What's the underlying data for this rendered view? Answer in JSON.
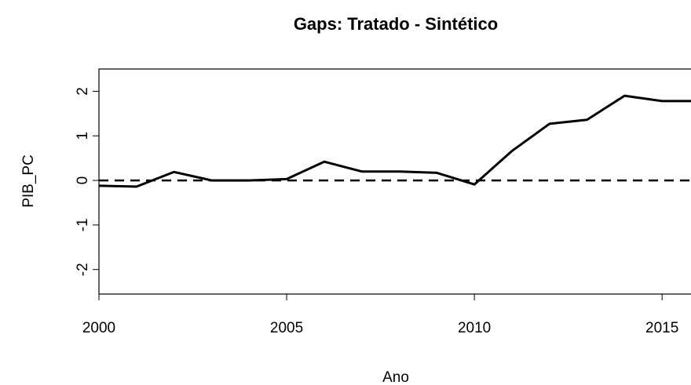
{
  "chart_data": {
    "type": "line",
    "title": "Gaps: Tratado - Sintético",
    "x_label": "Ano",
    "y_label": "PIB_PC",
    "x": [
      2000,
      2001,
      2002,
      2003,
      2004,
      2005,
      2006,
      2007,
      2008,
      2009,
      2010,
      2011,
      2012,
      2013,
      2014,
      2015,
      2016
    ],
    "series": [
      {
        "name": "Gap",
        "color": "#000000",
        "values": [
          -0.12,
          -0.14,
          0.19,
          0.0,
          0.0,
          0.03,
          0.42,
          0.2,
          0.2,
          0.17,
          -0.09,
          0.66,
          1.27,
          1.36,
          1.9,
          1.78,
          1.78
        ]
      }
    ],
    "hline": 0,
    "xlim": [
      2000,
      2015.77
    ],
    "xticks": [
      2000,
      2005,
      2010,
      2015
    ],
    "ylim": [
      -2.55,
      2.5
    ],
    "yticks": [
      -2,
      -1,
      0,
      1,
      2
    ]
  }
}
